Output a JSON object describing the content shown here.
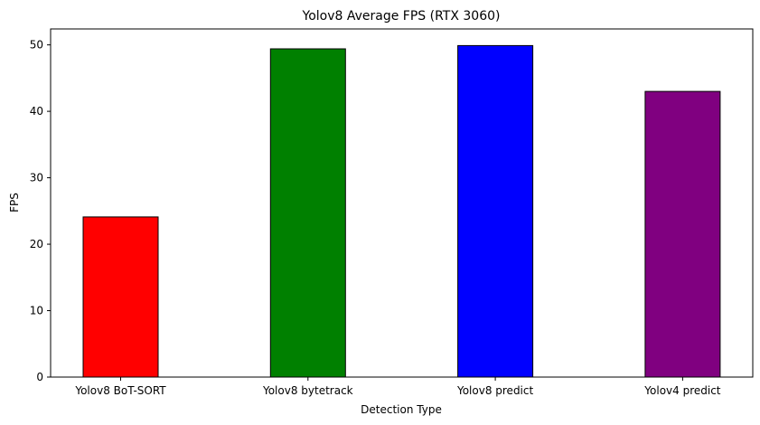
{
  "chart_data": {
    "type": "bar",
    "title": "Yolov8 Average FPS (RTX 3060)",
    "xlabel": "Detection Type",
    "ylabel": "FPS",
    "categories": [
      "Yolov8 BoT-SORT",
      "Yolov8 bytetrack",
      "Yolov8 predict",
      "Yolov4 predict"
    ],
    "values": [
      24.1,
      49.4,
      49.9,
      43.0
    ],
    "colors": [
      "#ff0000",
      "#008000",
      "#0000ff",
      "#800080"
    ],
    "edge_color": "#000000",
    "ylim": [
      0,
      52.4
    ],
    "yticks": [
      0,
      10,
      20,
      30,
      40,
      50
    ],
    "grid": false,
    "legend": false
  }
}
